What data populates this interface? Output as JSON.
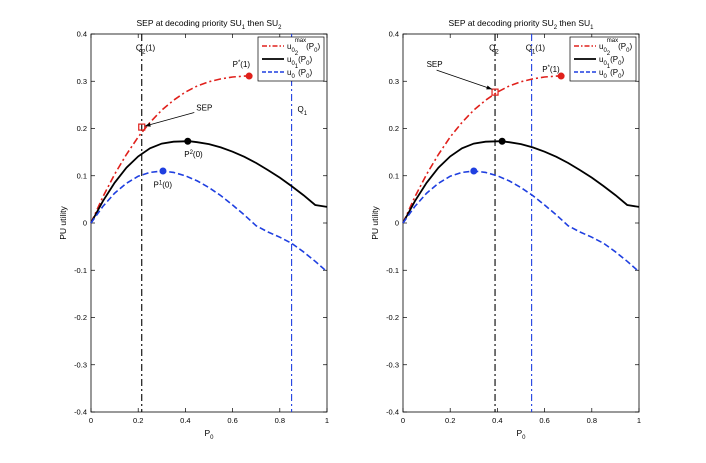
{
  "chart_data": [
    {
      "type": "line",
      "title": "SEP at decoding priority SU1 then SU2",
      "title_parts": [
        "SEP at decoding priority SU",
        "1",
        " then SU",
        "2"
      ],
      "xlabel": "P0",
      "xlabel_main": "P",
      "xlabel_sub": "0",
      "ylabel": "PU utility",
      "xlim": [
        0,
        1
      ],
      "ylim": [
        -0.4,
        0.4
      ],
      "xticks": [
        "0",
        "0.2",
        "0.4",
        "0.6",
        "0.8",
        "1"
      ],
      "yticks": [
        "-0.4",
        "-0.3",
        "-0.2",
        "-0.1",
        "0",
        "0.1",
        "0.2",
        "0.3",
        "0.4"
      ],
      "series": [
        {
          "name": "u0max(P0)",
          "sup": "max",
          "style": "dashdot",
          "color": "#e0201b",
          "x": [
            0,
            0.05,
            0.1,
            0.15,
            0.2,
            0.25,
            0.3,
            0.35,
            0.4,
            0.45,
            0.5,
            0.55,
            0.6,
            0.65,
            0.67
          ],
          "y": [
            0,
            0.055,
            0.103,
            0.145,
            0.182,
            0.213,
            0.239,
            0.26,
            0.277,
            0.29,
            0.299,
            0.305,
            0.309,
            0.311,
            0.311
          ]
        },
        {
          "name": "u02(P0)",
          "sup": "2",
          "style": "solid",
          "color": "#000000",
          "x": [
            0,
            0.05,
            0.1,
            0.15,
            0.2,
            0.25,
            0.3,
            0.35,
            0.4,
            0.42,
            0.45,
            0.5,
            0.55,
            0.6,
            0.65,
            0.7,
            0.75,
            0.8,
            0.85,
            0.9,
            0.95,
            1.0
          ],
          "y": [
            0,
            0.046,
            0.085,
            0.117,
            0.141,
            0.158,
            0.168,
            0.172,
            0.173,
            0.173,
            0.171,
            0.167,
            0.16,
            0.151,
            0.14,
            0.127,
            0.112,
            0.096,
            0.078,
            0.059,
            0.038,
            0.034
          ]
        },
        {
          "name": "u01(P0)",
          "sup": "1",
          "style": "dashed",
          "color": "#1f3fe0",
          "x": [
            0,
            0.05,
            0.1,
            0.15,
            0.2,
            0.25,
            0.3,
            0.35,
            0.4,
            0.45,
            0.5,
            0.55,
            0.6,
            0.65,
            0.7,
            0.75,
            0.8,
            0.85,
            0.9,
            0.95,
            1.0
          ],
          "y": [
            0,
            0.035,
            0.063,
            0.084,
            0.099,
            0.107,
            0.11,
            0.107,
            0.1,
            0.089,
            0.075,
            0.058,
            0.038,
            0.017,
            -0.006,
            -0.019,
            -0.03,
            -0.043,
            -0.061,
            -0.081,
            -0.103
          ]
        }
      ],
      "vlines": [
        {
          "x": 0.215,
          "color": "#000000",
          "style": "dashdot",
          "label": "Q2(1)",
          "parts": [
            "Q",
            "2",
            "(1)"
          ],
          "lx": 0.19,
          "ly": 0.365
        },
        {
          "x": 0.85,
          "color": "#1f3fe0",
          "style": "dashdot",
          "label": "Q1",
          "parts": [
            "Q",
            "1",
            ""
          ],
          "lx": 0.875,
          "ly": 0.235
        }
      ],
      "markers": [
        {
          "x": 0.67,
          "y": 0.311,
          "color": "#e0201b",
          "shape": "circle",
          "label": "P*(1)",
          "parts": [
            "P",
            "*",
            "(1)"
          ],
          "lx": 0.6,
          "ly": 0.33
        },
        {
          "x": 0.41,
          "y": 0.173,
          "color": "#000000",
          "shape": "circle",
          "label": "P2(0)",
          "parts": [
            "P",
            "2",
            "(0)"
          ],
          "lx": 0.395,
          "ly": 0.14
        },
        {
          "x": 0.305,
          "y": 0.11,
          "color": "#1f3fe0",
          "shape": "circle",
          "label": "P1(0)",
          "parts": [
            "P",
            "1",
            "(0)"
          ],
          "lx": 0.265,
          "ly": 0.075
        },
        {
          "x": 0.215,
          "y": 0.203,
          "color": "#e0201b",
          "shape": "square",
          "label": "",
          "parts": [
            "",
            "",
            ""
          ],
          "lx": 0,
          "ly": 0
        }
      ],
      "annotation": {
        "text": "SEP",
        "tx": 0.48,
        "ty": 0.238,
        "ax": 0.228,
        "ay": 0.205
      },
      "legend": "top-right"
    },
    {
      "type": "line",
      "title": "SEP at decoding priority SU2 then SU1",
      "title_parts": [
        "SEP at decoding priority SU",
        "2",
        " then SU",
        "1"
      ],
      "xlabel": "P0",
      "xlabel_main": "P",
      "xlabel_sub": "0",
      "ylabel": "PU utility",
      "xlim": [
        0,
        1
      ],
      "ylim": [
        -0.4,
        0.4
      ],
      "xticks": [
        "0",
        "0.2",
        "0.4",
        "0.6",
        "0.8",
        "1"
      ],
      "yticks": [
        "-0.4",
        "-0.3",
        "-0.2",
        "-0.1",
        "0",
        "0.1",
        "0.2",
        "0.3",
        "0.4"
      ],
      "series": [
        {
          "name": "u0max(P0)",
          "sup": "max",
          "style": "dashdot",
          "color": "#e0201b",
          "x": [
            0,
            0.05,
            0.1,
            0.15,
            0.2,
            0.25,
            0.3,
            0.35,
            0.4,
            0.45,
            0.5,
            0.55,
            0.6,
            0.65,
            0.67
          ],
          "y": [
            0,
            0.055,
            0.103,
            0.145,
            0.182,
            0.213,
            0.239,
            0.26,
            0.277,
            0.29,
            0.299,
            0.305,
            0.309,
            0.311,
            0.311
          ]
        },
        {
          "name": "u02(P0)",
          "sup": "2",
          "style": "solid",
          "color": "#000000",
          "x": [
            0,
            0.05,
            0.1,
            0.15,
            0.2,
            0.25,
            0.3,
            0.35,
            0.4,
            0.42,
            0.45,
            0.5,
            0.55,
            0.6,
            0.65,
            0.7,
            0.75,
            0.8,
            0.85,
            0.9,
            0.95,
            1.0
          ],
          "y": [
            0,
            0.046,
            0.085,
            0.117,
            0.141,
            0.158,
            0.168,
            0.172,
            0.173,
            0.173,
            0.171,
            0.167,
            0.16,
            0.151,
            0.14,
            0.127,
            0.112,
            0.096,
            0.078,
            0.059,
            0.038,
            0.034
          ]
        },
        {
          "name": "u01(P0)",
          "sup": "1",
          "style": "dashed",
          "color": "#1f3fe0",
          "x": [
            0,
            0.05,
            0.1,
            0.15,
            0.2,
            0.25,
            0.3,
            0.35,
            0.4,
            0.45,
            0.5,
            0.55,
            0.6,
            0.65,
            0.7,
            0.75,
            0.8,
            0.85,
            0.9,
            0.95,
            1.0
          ],
          "y": [
            0,
            0.035,
            0.063,
            0.084,
            0.099,
            0.107,
            0.11,
            0.107,
            0.1,
            0.089,
            0.075,
            0.058,
            0.038,
            0.017,
            -0.006,
            -0.019,
            -0.03,
            -0.043,
            -0.061,
            -0.081,
            -0.103
          ]
        }
      ],
      "vlines": [
        {
          "x": 0.39,
          "color": "#000000",
          "style": "dashdot",
          "label": "Q2",
          "parts": [
            "Q",
            "2",
            ""
          ],
          "lx": 0.365,
          "ly": 0.365
        },
        {
          "x": 0.545,
          "color": "#1f3fe0",
          "style": "dashdot",
          "label": "Q1(1)",
          "parts": [
            "Q",
            "1",
            "(1)"
          ],
          "lx": 0.52,
          "ly": 0.365
        }
      ],
      "markers": [
        {
          "x": 0.67,
          "y": 0.311,
          "color": "#e0201b",
          "shape": "circle",
          "label": "P*(1)",
          "parts": [
            "P",
            "*",
            "(1)"
          ],
          "lx": 0.59,
          "ly": 0.32
        },
        {
          "x": 0.42,
          "y": 0.173,
          "color": "#000000",
          "shape": "circle",
          "label": "",
          "parts": [
            "",
            "",
            ""
          ],
          "lx": 0,
          "ly": 0
        },
        {
          "x": 0.3,
          "y": 0.11,
          "color": "#1f3fe0",
          "shape": "circle",
          "label": "",
          "parts": [
            "",
            "",
            ""
          ],
          "lx": 0,
          "ly": 0
        },
        {
          "x": 0.39,
          "y": 0.277,
          "color": "#e0201b",
          "shape": "square",
          "label": "",
          "parts": [
            "",
            "",
            ""
          ],
          "lx": 0,
          "ly": 0
        }
      ],
      "annotation": {
        "text": "SEP",
        "tx": 0.1,
        "ty": 0.33,
        "ax": 0.378,
        "ay": 0.283
      },
      "legend": "top-right"
    }
  ]
}
